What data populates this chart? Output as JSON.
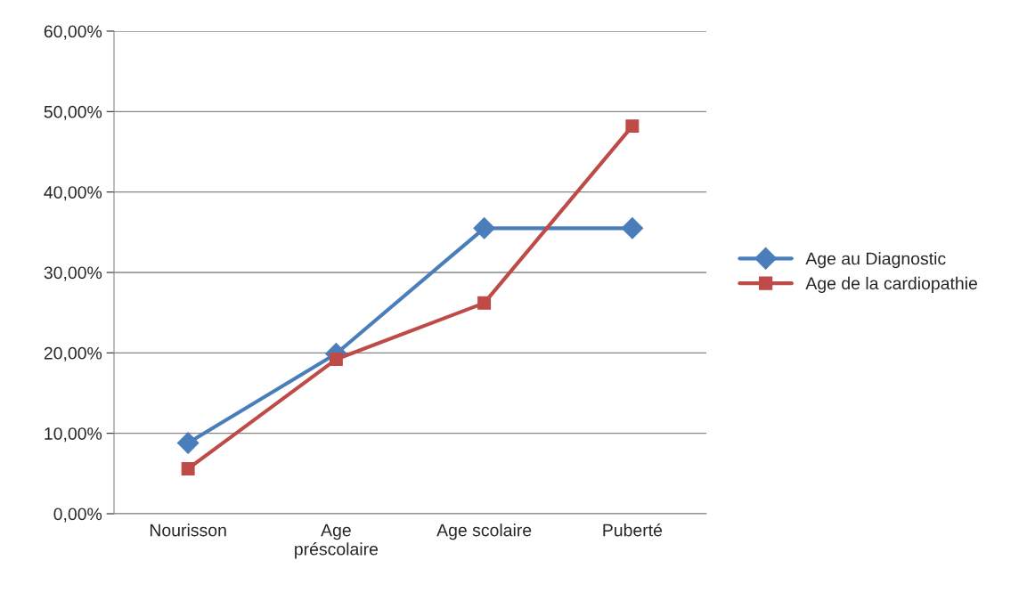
{
  "chart_data": {
    "type": "line",
    "categories": [
      "Nourisson",
      "Age préscolaire",
      "Age scolaire",
      "Puberté"
    ],
    "series": [
      {
        "name": "Age au Diagnostic",
        "color": "#4a7ebb",
        "marker": "diamond",
        "values": [
          8.8,
          19.9,
          35.5,
          35.5
        ]
      },
      {
        "name": "Age de la cardiopathie",
        "color": "#be4b48",
        "marker": "square",
        "values": [
          5.6,
          19.2,
          26.2,
          48.2
        ]
      }
    ],
    "ylim": [
      0,
      60
    ],
    "yticks": [
      {
        "value": 0,
        "label": "0,00%"
      },
      {
        "value": 10,
        "label": "10,00%"
      },
      {
        "value": 20,
        "label": "20,00%"
      },
      {
        "value": 30,
        "label": "30,00%"
      },
      {
        "value": 40,
        "label": "40,00%"
      },
      {
        "value": 50,
        "label": "50,00%"
      },
      {
        "value": 60,
        "label": "60,00%"
      }
    ],
    "grid": "y",
    "legend": "right",
    "line_style": "solid"
  }
}
